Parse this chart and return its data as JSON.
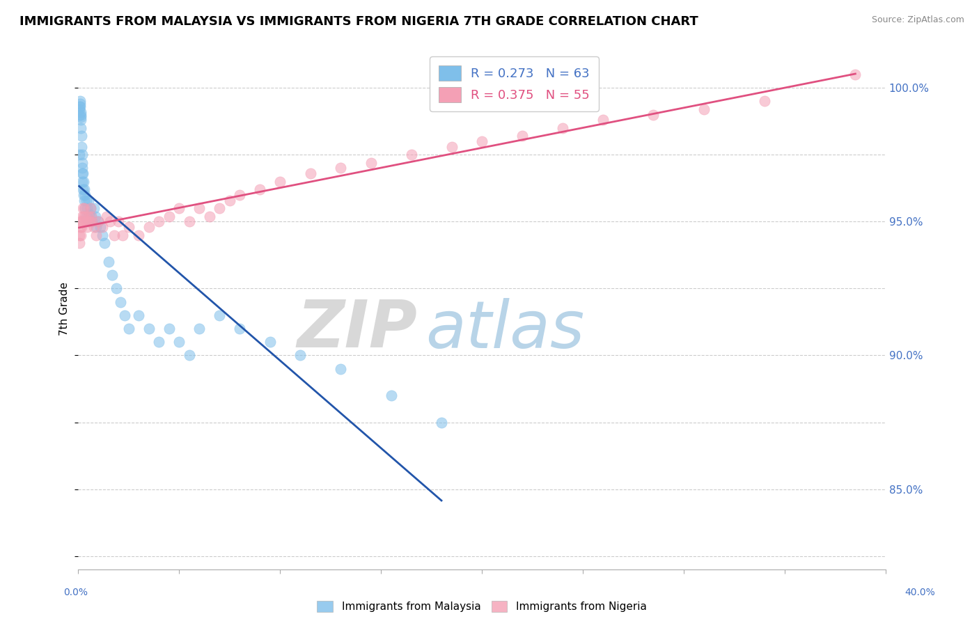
{
  "title": "IMMIGRANTS FROM MALAYSIA VS IMMIGRANTS FROM NIGERIA 7TH GRADE CORRELATION CHART",
  "source": "Source: ZipAtlas.com",
  "ylabel": "7th Grade",
  "xmin": 0.0,
  "xmax": 40.0,
  "ymin": 82.0,
  "ymax": 101.5,
  "y_ticks": [
    85.0,
    90.0,
    95.0,
    100.0
  ],
  "legend_r_malaysia": "R = 0.273",
  "legend_n_malaysia": "N = 63",
  "legend_r_nigeria": "R = 0.375",
  "legend_n_nigeria": "N = 55",
  "color_malaysia": "#7fbfea",
  "color_nigeria": "#f4a0b5",
  "color_trendline_malaysia": "#2255aa",
  "color_trendline_nigeria": "#e05080",
  "watermark_zip": "ZIP",
  "watermark_atlas": "atlas",
  "malaysia_x": [
    0.05,
    0.08,
    0.08,
    0.08,
    0.1,
    0.1,
    0.1,
    0.12,
    0.12,
    0.15,
    0.15,
    0.15,
    0.18,
    0.18,
    0.2,
    0.2,
    0.2,
    0.22,
    0.22,
    0.25,
    0.25,
    0.28,
    0.28,
    0.3,
    0.3,
    0.35,
    0.35,
    0.4,
    0.4,
    0.45,
    0.5,
    0.5,
    0.55,
    0.6,
    0.65,
    0.7,
    0.8,
    0.85,
    0.9,
    1.0,
    1.1,
    1.2,
    1.3,
    1.5,
    1.7,
    1.9,
    2.1,
    2.3,
    2.5,
    3.0,
    3.5,
    4.0,
    4.5,
    5.0,
    5.5,
    6.0,
    7.0,
    8.0,
    9.5,
    11.0,
    13.0,
    15.5,
    18.0
  ],
  "malaysia_y": [
    97.5,
    99.0,
    99.2,
    99.3,
    99.5,
    99.4,
    99.3,
    99.1,
    98.9,
    99.0,
    98.8,
    98.5,
    98.2,
    97.8,
    97.5,
    97.2,
    96.8,
    97.0,
    96.5,
    96.8,
    96.2,
    96.5,
    96.0,
    96.2,
    95.8,
    96.0,
    95.5,
    95.8,
    95.2,
    95.5,
    95.8,
    95.0,
    95.3,
    95.5,
    95.2,
    95.0,
    95.5,
    95.2,
    94.8,
    95.0,
    94.8,
    94.5,
    94.2,
    93.5,
    93.0,
    92.5,
    92.0,
    91.5,
    91.0,
    91.5,
    91.0,
    90.5,
    91.0,
    90.5,
    90.0,
    91.0,
    91.5,
    91.0,
    90.5,
    90.0,
    89.5,
    88.5,
    87.5
  ],
  "nigeria_x": [
    0.05,
    0.08,
    0.1,
    0.12,
    0.15,
    0.18,
    0.2,
    0.22,
    0.25,
    0.28,
    0.3,
    0.35,
    0.4,
    0.45,
    0.5,
    0.55,
    0.6,
    0.65,
    0.7,
    0.8,
    0.9,
    1.0,
    1.2,
    1.4,
    1.6,
    1.8,
    2.0,
    2.2,
    2.5,
    3.0,
    3.5,
    4.0,
    4.5,
    5.0,
    5.5,
    6.0,
    6.5,
    7.0,
    7.5,
    8.0,
    9.0,
    10.0,
    11.5,
    13.0,
    14.5,
    16.5,
    18.5,
    20.0,
    22.0,
    24.0,
    26.0,
    28.5,
    31.0,
    34.0,
    38.5
  ],
  "nigeria_y": [
    94.5,
    94.2,
    94.8,
    94.5,
    95.0,
    94.8,
    95.2,
    95.0,
    95.5,
    95.2,
    95.5,
    95.2,
    95.0,
    94.8,
    95.2,
    95.0,
    95.5,
    95.2,
    95.0,
    94.8,
    94.5,
    95.0,
    94.8,
    95.2,
    95.0,
    94.5,
    95.0,
    94.5,
    94.8,
    94.5,
    94.8,
    95.0,
    95.2,
    95.5,
    95.0,
    95.5,
    95.2,
    95.5,
    95.8,
    96.0,
    96.2,
    96.5,
    96.8,
    97.0,
    97.2,
    97.5,
    97.8,
    98.0,
    98.2,
    98.5,
    98.8,
    99.0,
    99.2,
    99.5,
    100.5
  ]
}
